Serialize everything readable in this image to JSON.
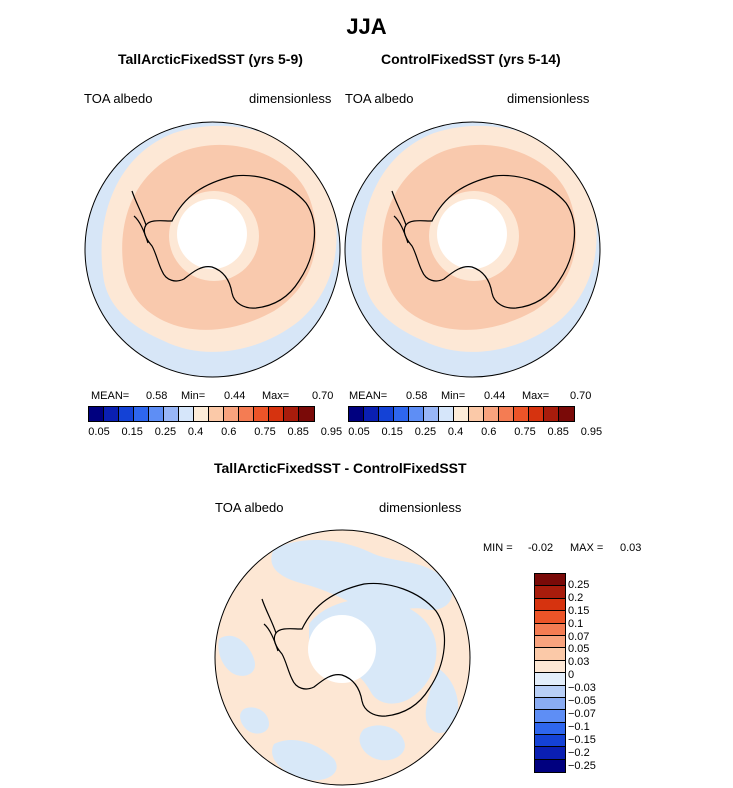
{
  "title": "JJA",
  "panels": [
    {
      "title": "TallArcticFixedSST (yrs 5-9)",
      "left_label": "TOA albedo",
      "right_label": "dimensionless",
      "mean_label": "MEAN=",
      "mean": "0.58",
      "min_label": "Min=",
      "min": "0.44",
      "max_label": "Max=",
      "max": "0.70"
    },
    {
      "title": "ControlFixedSST (yrs 5-14)",
      "left_label": "TOA albedo",
      "right_label": "dimensionless",
      "mean_label": "MEAN=",
      "mean": "0.58",
      "min_label": "Min=",
      "min": "0.44",
      "max_label": "Max=",
      "max": "0.70"
    }
  ],
  "colorbar_top": {
    "colors": [
      "#00007f",
      "#0a1fb2",
      "#1442d6",
      "#2e66ee",
      "#5e8ef5",
      "#98b6f7",
      "#d6e6fa",
      "#fdecd8",
      "#fbc9a8",
      "#f8a37e",
      "#f47c53",
      "#ec5428",
      "#d6330f",
      "#a81c0c",
      "#7a0a08"
    ],
    "ticks": [
      "0.05",
      "0.15",
      "0.25",
      "0.4",
      "0.6",
      "0.75",
      "0.85",
      "0.95"
    ]
  },
  "diff_panel": {
    "title": "TallArcticFixedSST - ControlFixedSST",
    "left_label": "TOA albedo",
    "right_label": "dimensionless",
    "min_label": "MIN =",
    "min": "-0.02",
    "max_label": "MAX =",
    "max": "0.03"
  },
  "colorbar_diff": {
    "colors": [
      "#7a0a08",
      "#a81c0c",
      "#d6330f",
      "#ec5428",
      "#f47c53",
      "#f8a37e",
      "#fbc9a8",
      "#fde7d4",
      "#e3eefb",
      "#b8cff7",
      "#8aacf3",
      "#5e8ef5",
      "#2e66ee",
      "#1442d6",
      "#0a1fb2",
      "#00007f"
    ],
    "ticks": [
      "0.25",
      "0.2",
      "0.15",
      "0.1",
      "0.07",
      "0.05",
      "0.03",
      "0",
      "−0.03",
      "−0.05",
      "−0.07",
      "−0.1",
      "−0.15",
      "−0.2",
      "−0.25"
    ]
  },
  "map_colors": {
    "ocean_light": "#d7e6f7",
    "band_light": "#fde8d6",
    "band_mid": "#f9c9ad",
    "diff_light_blue": "#d8e8f8",
    "diff_light_orange": "#fde7d4"
  }
}
